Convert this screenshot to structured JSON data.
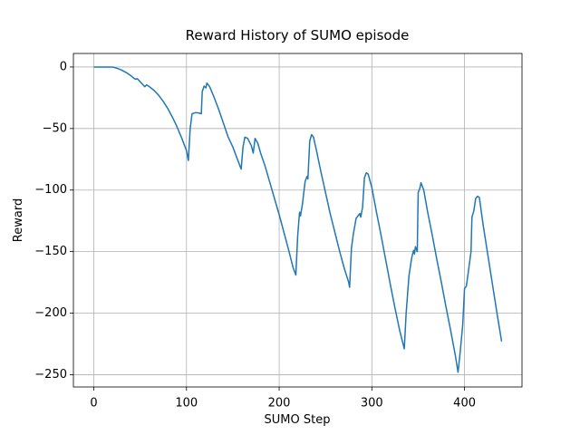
{
  "chart_data": {
    "type": "line",
    "title": "Reward History of SUMO episode",
    "xlabel": "SUMO Step",
    "ylabel": "Reward",
    "x": [
      0,
      10,
      20,
      25,
      30,
      35,
      40,
      43,
      45,
      47,
      50,
      55,
      57,
      60,
      65,
      70,
      75,
      80,
      85,
      90,
      95,
      100,
      102,
      104,
      106,
      110,
      114,
      116,
      117,
      119,
      121,
      122,
      125,
      130,
      135,
      140,
      145,
      150,
      155,
      159,
      161,
      163,
      166,
      170,
      172,
      174,
      177,
      180,
      185,
      190,
      195,
      200,
      205,
      210,
      215,
      218,
      220,
      222,
      223,
      225,
      228,
      230,
      231,
      233,
      235,
      237,
      240,
      245,
      250,
      255,
      260,
      265,
      270,
      275,
      276,
      278,
      280,
      283,
      285,
      287,
      288,
      290,
      292,
      294,
      296,
      300,
      305,
      310,
      315,
      320,
      325,
      330,
      335,
      337,
      340,
      343,
      345,
      346,
      347,
      349,
      350,
      352,
      353,
      356,
      360,
      365,
      370,
      375,
      380,
      385,
      390,
      393,
      395,
      398,
      400,
      402,
      404,
      407,
      408,
      410,
      412,
      414,
      416,
      420,
      425,
      430,
      435,
      440
    ],
    "series": [
      {
        "name": "reward",
        "color": "#1f77b4",
        "values": [
          0,
          0,
          0,
          -1,
          -2.5,
          -4.5,
          -7,
          -9,
          -10,
          -9.5,
          -12,
          -16,
          -14.5,
          -16,
          -19,
          -23,
          -28,
          -34,
          -41,
          -49,
          -58,
          -68,
          -76,
          -50,
          -38,
          -37,
          -37.5,
          -38,
          -20,
          -15.5,
          -17,
          -13,
          -16,
          -25,
          -35,
          -46,
          -57,
          -65,
          -75,
          -83,
          -65,
          -57,
          -58,
          -64,
          -70,
          -58,
          -62,
          -70,
          -81,
          -94,
          -107,
          -120,
          -134,
          -148,
          -163,
          -169,
          -137,
          -118,
          -121,
          -112,
          -93,
          -89,
          -91,
          -60,
          -55,
          -57,
          -67,
          -85,
          -102,
          -119,
          -134,
          -149,
          -163,
          -175,
          -179,
          -147,
          -136,
          -123,
          -121,
          -119,
          -122,
          -114,
          -90,
          -86,
          -87,
          -98,
          -118,
          -137,
          -157,
          -177,
          -196,
          -214,
          -229,
          -200,
          -170,
          -155,
          -149,
          -152,
          -146,
          -150,
          -102,
          -98,
          -94,
          -100,
          -117,
          -136,
          -156,
          -175,
          -195,
          -214,
          -234,
          -248,
          -234,
          -210,
          -180,
          -178,
          -167,
          -150,
          -122,
          -117,
          -107,
          -105,
          -106,
          -128,
          -152,
          -176,
          -200,
          -223
        ]
      }
    ],
    "xlim": [
      -22,
      462
    ],
    "ylim": [
      -260,
      11
    ],
    "xticks": [
      0,
      100,
      200,
      300,
      400
    ],
    "yticks": [
      {
        "value": -250,
        "label": "−250"
      },
      {
        "value": -200,
        "label": "−200"
      },
      {
        "value": -150,
        "label": "−150"
      },
      {
        "value": -100,
        "label": "−100"
      },
      {
        "value": -50,
        "label": "−50"
      },
      0
    ],
    "grid": true
  }
}
